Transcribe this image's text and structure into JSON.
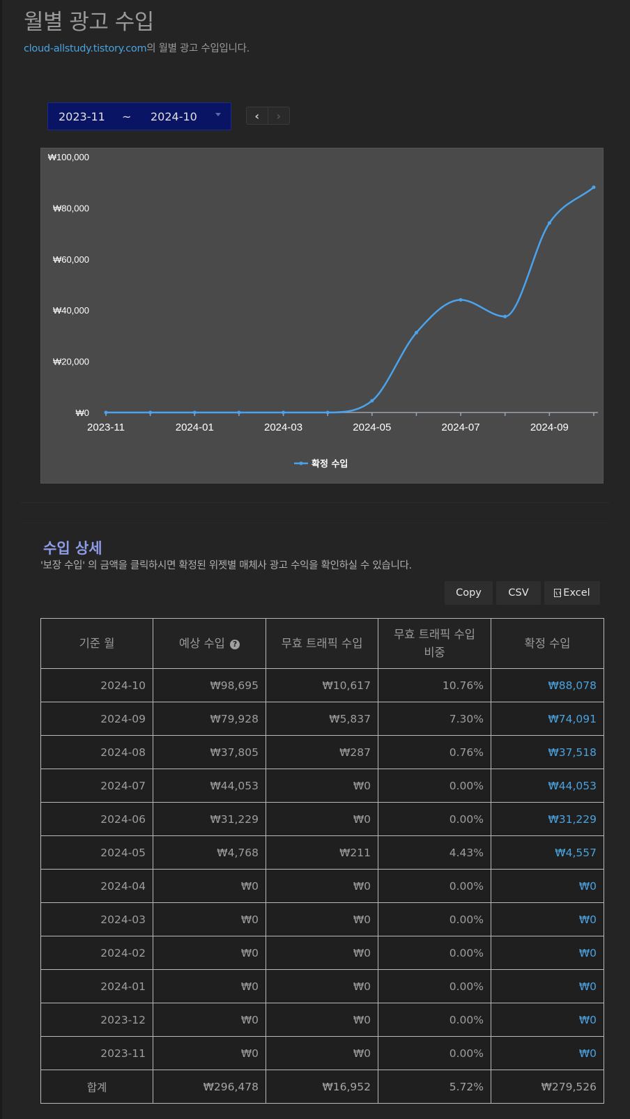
{
  "header": {
    "title": "월별 광고 수입",
    "site_link": "cloud-allstudy.tistory.com",
    "subtitle_suffix": "의 월별 광고 수입입니다."
  },
  "date_range": {
    "start": "2023-11",
    "separator": "~",
    "end": "2024-10"
  },
  "nav": {
    "prev_icon": "chevron-left-icon",
    "next_icon": "chevron-right-icon"
  },
  "chart_data": {
    "type": "line",
    "x": [
      "2023-11",
      "2023-12",
      "2024-01",
      "2024-02",
      "2024-03",
      "2024-04",
      "2024-05",
      "2024-06",
      "2024-07",
      "2024-08",
      "2024-09",
      "2024-10"
    ],
    "x_tick_labels": [
      "2023-11",
      "2024-01",
      "2024-03",
      "2024-05",
      "2024-07",
      "2024-09"
    ],
    "y_tick_labels": [
      "₩100,000",
      "₩80,000",
      "₩60,000",
      "₩40,000",
      "₩20,000",
      "₩0"
    ],
    "ylim": [
      0,
      100000
    ],
    "series": [
      {
        "name": "확정 수입",
        "color": "#4aa3ec",
        "values": [
          0,
          0,
          0,
          0,
          0,
          0,
          4557,
          31229,
          44053,
          37518,
          74091,
          88078
        ]
      }
    ],
    "legend_position": "bottom",
    "grid": false
  },
  "detail": {
    "title": "수입 상세",
    "description": "'보장 수입' 의 금액을 클릭하시면 확정된 위젯별 매체사 광고 수익을 확인하실 수 있습니다.",
    "buttons": {
      "copy": "Copy",
      "csv": "CSV",
      "excel": "Excel"
    },
    "columns": [
      "기준 월",
      "예상 수입",
      "무효 트래픽 수입",
      "무효 트래픽 수입\n비중",
      "확정 수입"
    ],
    "rows": [
      [
        "2024-10",
        "₩98,695",
        "₩10,617",
        "10.76%",
        "₩88,078"
      ],
      [
        "2024-09",
        "₩79,928",
        "₩5,837",
        "7.30%",
        "₩74,091"
      ],
      [
        "2024-08",
        "₩37,805",
        "₩287",
        "0.76%",
        "₩37,518"
      ],
      [
        "2024-07",
        "₩44,053",
        "₩0",
        "0.00%",
        "₩44,053"
      ],
      [
        "2024-06",
        "₩31,229",
        "₩0",
        "0.00%",
        "₩31,229"
      ],
      [
        "2024-05",
        "₩4,768",
        "₩211",
        "4.43%",
        "₩4,557"
      ],
      [
        "2024-04",
        "₩0",
        "₩0",
        "0.00%",
        "₩0"
      ],
      [
        "2024-03",
        "₩0",
        "₩0",
        "0.00%",
        "₩0"
      ],
      [
        "2024-02",
        "₩0",
        "₩0",
        "0.00%",
        "₩0"
      ],
      [
        "2024-01",
        "₩0",
        "₩0",
        "0.00%",
        "₩0"
      ],
      [
        "2023-12",
        "₩0",
        "₩0",
        "0.00%",
        "₩0"
      ],
      [
        "2023-11",
        "₩0",
        "₩0",
        "0.00%",
        "₩0"
      ]
    ],
    "total": [
      "합계",
      "₩296,478",
      "₩16,952",
      "5.72%",
      "₩279,526"
    ]
  },
  "colors": {
    "accent": "#4aa3df",
    "picker_bg": "#0a1464",
    "chart_bg": "#4a4a4a"
  }
}
